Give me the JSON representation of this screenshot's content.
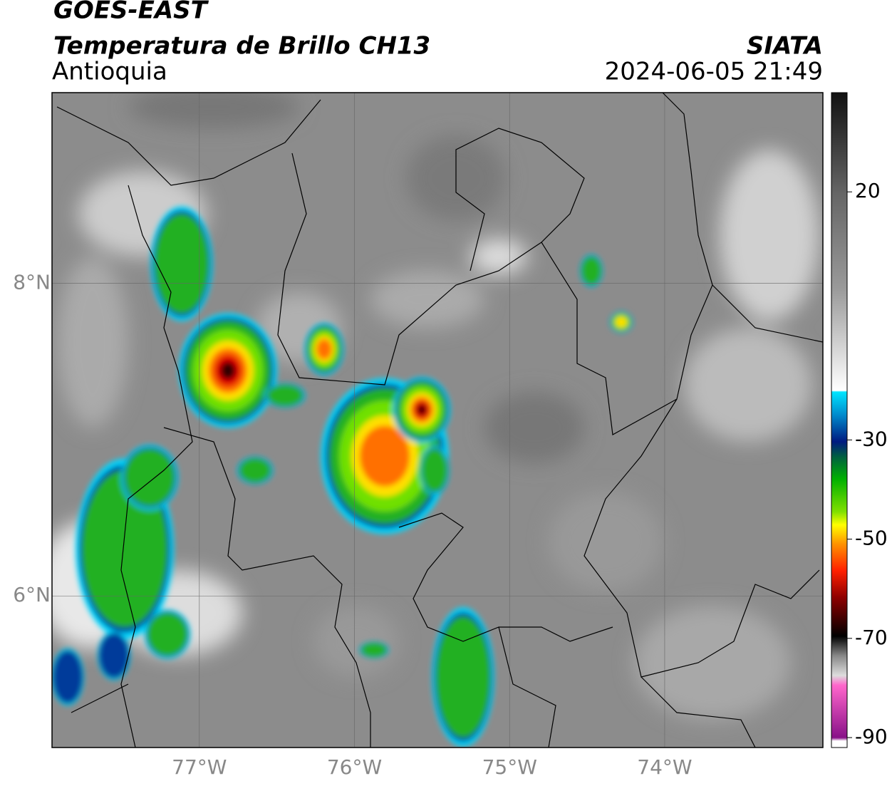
{
  "header": {
    "title": "GOES-EAST",
    "subtitle": "Temperatura de Brillo CH13",
    "region": "Antioquia",
    "source": "SIATA",
    "datetime": "2024-06-05 21:49"
  },
  "map": {
    "xlim": [
      -77.95,
      -72.98
    ],
    "ylim": [
      5.03,
      9.22
    ],
    "xticks": [
      {
        "value": -77,
        "label": "77°W"
      },
      {
        "value": -76,
        "label": "76°W"
      },
      {
        "value": -75,
        "label": "75°W"
      },
      {
        "value": -74,
        "label": "74°W"
      }
    ],
    "yticks": [
      {
        "value": 8,
        "label": "8°N"
      },
      {
        "value": 6,
        "label": "6°N"
      }
    ]
  },
  "colorbar": {
    "lim": [
      -92,
      40
    ],
    "ticks": [
      20,
      -30,
      -50,
      -70,
      -90
    ]
  }
}
